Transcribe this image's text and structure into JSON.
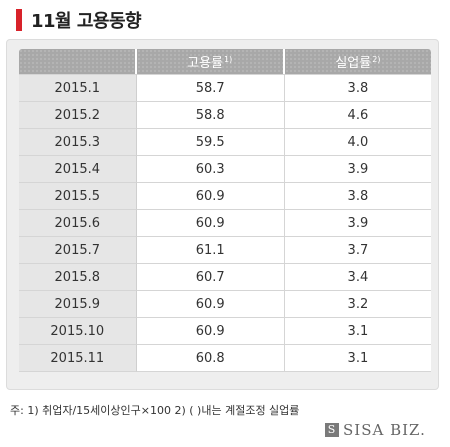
{
  "title": "11월 고용동향",
  "table": {
    "headers": {
      "period": "",
      "employment_rate": "고용률",
      "employment_rate_note": "1)",
      "unemployment_rate": "실업률",
      "unemployment_rate_note": "2)"
    },
    "rows": [
      {
        "period": "2015.1",
        "employment_rate": "58.7",
        "unemployment_rate": "3.8"
      },
      {
        "period": "2015.2",
        "employment_rate": "58.8",
        "unemployment_rate": "4.6"
      },
      {
        "period": "2015.3",
        "employment_rate": "59.5",
        "unemployment_rate": "4.0"
      },
      {
        "period": "2015.4",
        "employment_rate": "60.3",
        "unemployment_rate": "3.9"
      },
      {
        "period": "2015.5",
        "employment_rate": "60.9",
        "unemployment_rate": "3.8"
      },
      {
        "period": "2015.6",
        "employment_rate": "60.9",
        "unemployment_rate": "3.9"
      },
      {
        "period": "2015.7",
        "employment_rate": "61.1",
        "unemployment_rate": "3.7"
      },
      {
        "period": "2015.8",
        "employment_rate": "60.7",
        "unemployment_rate": "3.4"
      },
      {
        "period": "2015.9",
        "employment_rate": "60.9",
        "unemployment_rate": "3.2"
      },
      {
        "period": "2015.10",
        "employment_rate": "60.9",
        "unemployment_rate": "3.1"
      },
      {
        "period": "2015.11",
        "employment_rate": "60.8",
        "unemployment_rate": "3.1"
      }
    ]
  },
  "footnote": "주: 1) 취업자/15세이상인구×100   2) (  )내는 계절조정 실업률",
  "brand": {
    "logo_text": "SISA BIZ.",
    "mark": "S"
  },
  "colors": {
    "accent": "#d8222a",
    "header_bg": "#a8a8a8",
    "period_bg": "#e6e6e6",
    "panel_bg": "#eeeeee"
  }
}
